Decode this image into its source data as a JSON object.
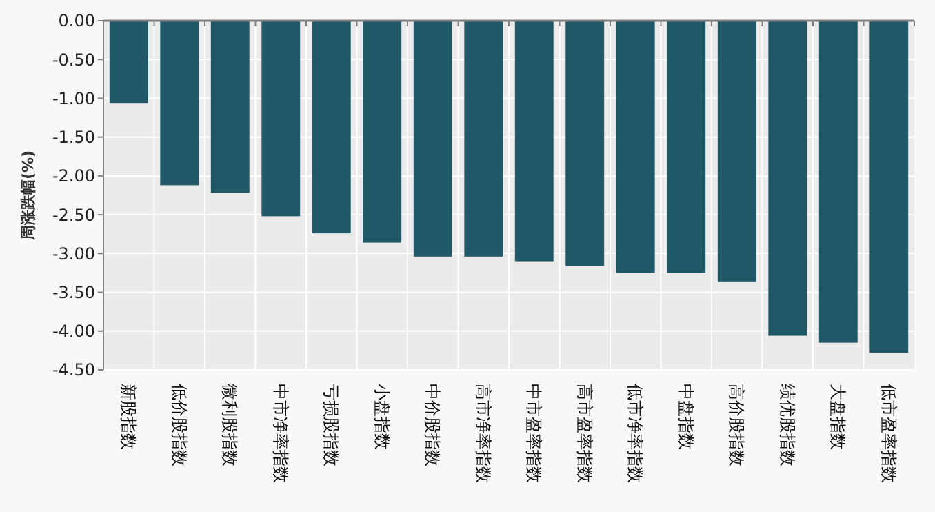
{
  "chart_data": {
    "type": "bar",
    "ylabel": "周涨跌幅(%)",
    "categories": [
      "新股指数",
      "低价股指数",
      "微利股指数",
      "中市净率指数",
      "亏损股指数",
      "小盘指数",
      "中价股指数",
      "高市净率指数",
      "中市盈率指数",
      "高市盈率指数",
      "低市净率指数",
      "中盘指数",
      "高价股指数",
      "绩优股指数",
      "大盘指数",
      "低市盈率指数"
    ],
    "values": [
      -1.06,
      -2.12,
      -2.22,
      -2.52,
      -2.74,
      -2.86,
      -3.04,
      -3.04,
      -3.1,
      -3.16,
      -3.25,
      -3.25,
      -3.36,
      -4.06,
      -4.15,
      -4.28
    ],
    "color": "#215868",
    "ylim": [
      -4.5,
      0
    ],
    "yticks": [
      {
        "value": 0,
        "label": "0.00"
      },
      {
        "value": -0.5,
        "label": "-0.50"
      },
      {
        "value": -1,
        "label": "-1.00"
      },
      {
        "value": -1.5,
        "label": "-1.50"
      },
      {
        "value": -2,
        "label": "-2.00"
      },
      {
        "value": -2.5,
        "label": "-2.50"
      },
      {
        "value": -3,
        "label": "-3.00"
      },
      {
        "value": -3.5,
        "label": "-3.50"
      },
      {
        "value": -4,
        "label": "-4.00"
      },
      {
        "value": -4.5,
        "label": "-4.50"
      }
    ],
    "grid": true
  }
}
